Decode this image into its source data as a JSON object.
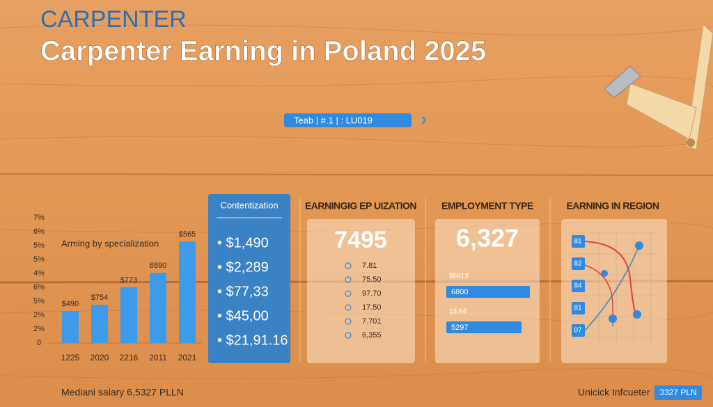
{
  "header": {
    "kicker": "CARPENTER",
    "title": "Carpenter Earning in Poland 2025",
    "pill": "Teab  |  #.1  |  : LU019"
  },
  "chart_data": {
    "type": "bar",
    "subtitle": "Arming by specialization",
    "categories": [
      "1225",
      "2020",
      "2216",
      "2011",
      "2021"
    ],
    "values": [
      2.3,
      2.75,
      4.0,
      5.05,
      7.3
    ],
    "value_labels": [
      "$490",
      "$754",
      "$773",
      "6890",
      "$565"
    ],
    "color": "#3d9be9",
    "ylim": [
      0,
      9
    ],
    "yticks": [
      0,
      {
        "value": 1,
        "label": "2%"
      },
      {
        "value": 2,
        "label": "2%"
      },
      {
        "value": 3,
        "label": "5%"
      },
      {
        "value": 4,
        "label": "6%"
      },
      {
        "value": 5,
        "label": "4%"
      },
      {
        "value": 6,
        "label": "5%"
      },
      {
        "value": 7,
        "label": "5%"
      },
      {
        "value": 8,
        "label": "6%"
      },
      {
        "value": 9,
        "label": "7%"
      }
    ]
  },
  "panels": [
    {
      "title": "Contentization",
      "items": [
        "• $1,490",
        "• $2,289",
        "• $77,33",
        "• $45,00",
        "• $21,91.16"
      ]
    },
    {
      "title": "EARNINGIG EP UIZATION",
      "value": "7495",
      "items": [
        "7.81",
        "75.50",
        "97.70",
        "17.50",
        "7.701",
        "6,355"
      ]
    },
    {
      "title": "EMPLOYMENT TYPE",
      "value": "6,327",
      "rows": [
        {
          "label": "$6813",
          "bar": "6800"
        },
        {
          "label": "13.64",
          "bar": "5297"
        }
      ]
    },
    {
      "title": "EARNING IN REGION",
      "nodes": [
        "81",
        "82",
        "84",
        "81",
        "07"
      ]
    }
  ],
  "footer": {
    "left": "Mediani salary 6,5327 PLLN",
    "right": "Unicick Infcueter",
    "badge": "3327 PLN"
  }
}
